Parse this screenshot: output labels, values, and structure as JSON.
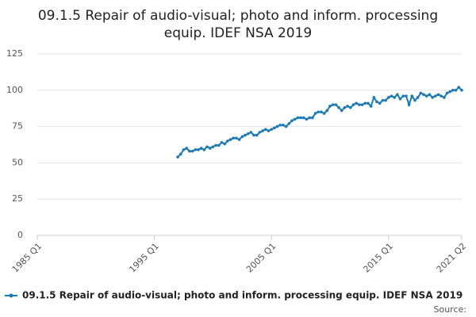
{
  "chart_data": {
    "type": "line",
    "title": [
      "09.1.5 Repair of audio-visual; photo and inform. processing",
      "equip. IDEF NSA 2019"
    ],
    "categories": [
      "1985 Q1",
      null,
      null,
      null,
      null,
      null,
      null,
      null,
      null,
      null,
      null,
      null,
      null,
      null,
      null,
      null,
      null,
      null,
      null,
      null,
      null,
      null,
      null,
      null,
      null,
      null,
      null,
      null,
      null,
      null,
      null,
      null,
      null,
      null,
      null,
      null,
      null,
      null,
      null,
      null,
      "1995 Q1",
      null,
      null,
      null,
      null,
      null,
      null,
      null,
      null,
      null,
      null,
      null,
      null,
      null,
      null,
      null,
      null,
      null,
      null,
      null,
      null,
      null,
      null,
      null,
      null,
      null,
      null,
      null,
      null,
      null,
      null,
      null,
      null,
      null,
      null,
      null,
      null,
      null,
      null,
      null,
      "2005 Q1",
      null,
      null,
      null,
      null,
      null,
      null,
      null,
      null,
      null,
      null,
      null,
      null,
      null,
      null,
      null,
      null,
      null,
      null,
      null,
      null,
      null,
      null,
      null,
      null,
      null,
      null,
      null,
      null,
      null,
      null,
      null,
      null,
      null,
      null,
      null,
      null,
      null,
      null,
      null,
      "2015 Q1",
      null,
      null,
      null,
      null,
      null,
      null,
      null,
      null,
      null,
      null,
      null,
      null,
      null,
      null,
      null,
      null,
      null,
      null,
      null,
      null,
      null,
      null,
      null,
      null,
      "2021 Q2"
    ],
    "series": [
      {
        "name": "09.1.5 Repair of audio-visual; photo and inform. processing equip. IDEF NSA 2019",
        "color": "#1a7ab8",
        "values": [
          null,
          null,
          null,
          null,
          null,
          null,
          null,
          null,
          null,
          null,
          null,
          null,
          null,
          null,
          null,
          null,
          null,
          null,
          null,
          null,
          null,
          null,
          null,
          null,
          null,
          null,
          null,
          null,
          null,
          null,
          null,
          null,
          null,
          null,
          null,
          null,
          null,
          null,
          null,
          null,
          null,
          null,
          null,
          null,
          null,
          null,
          null,
          null,
          54,
          56,
          59,
          60,
          58,
          58,
          59,
          59,
          60,
          59,
          61,
          60,
          61,
          62,
          62,
          64,
          63,
          65,
          66,
          67,
          67,
          66,
          68,
          69,
          70,
          71,
          69,
          69,
          71,
          72,
          73,
          72,
          73,
          74,
          75,
          76,
          76,
          75,
          77,
          79,
          80,
          81,
          81,
          81,
          80,
          81,
          81,
          84,
          85,
          85,
          84,
          86,
          89,
          90,
          90,
          88,
          86,
          88,
          89,
          88,
          90,
          91,
          90,
          90,
          91,
          91,
          89,
          95,
          92,
          91,
          93,
          93,
          95,
          96,
          95,
          97,
          94,
          96,
          96,
          90,
          96,
          93,
          95,
          98,
          97,
          96,
          97,
          95,
          96,
          97,
          96,
          95,
          98,
          99,
          100,
          100,
          102,
          100
        ]
      }
    ],
    "ylim": [
      0,
      125
    ],
    "yticks": [
      0,
      25,
      50,
      75,
      100,
      125
    ],
    "grid": true,
    "source": "Source:"
  }
}
